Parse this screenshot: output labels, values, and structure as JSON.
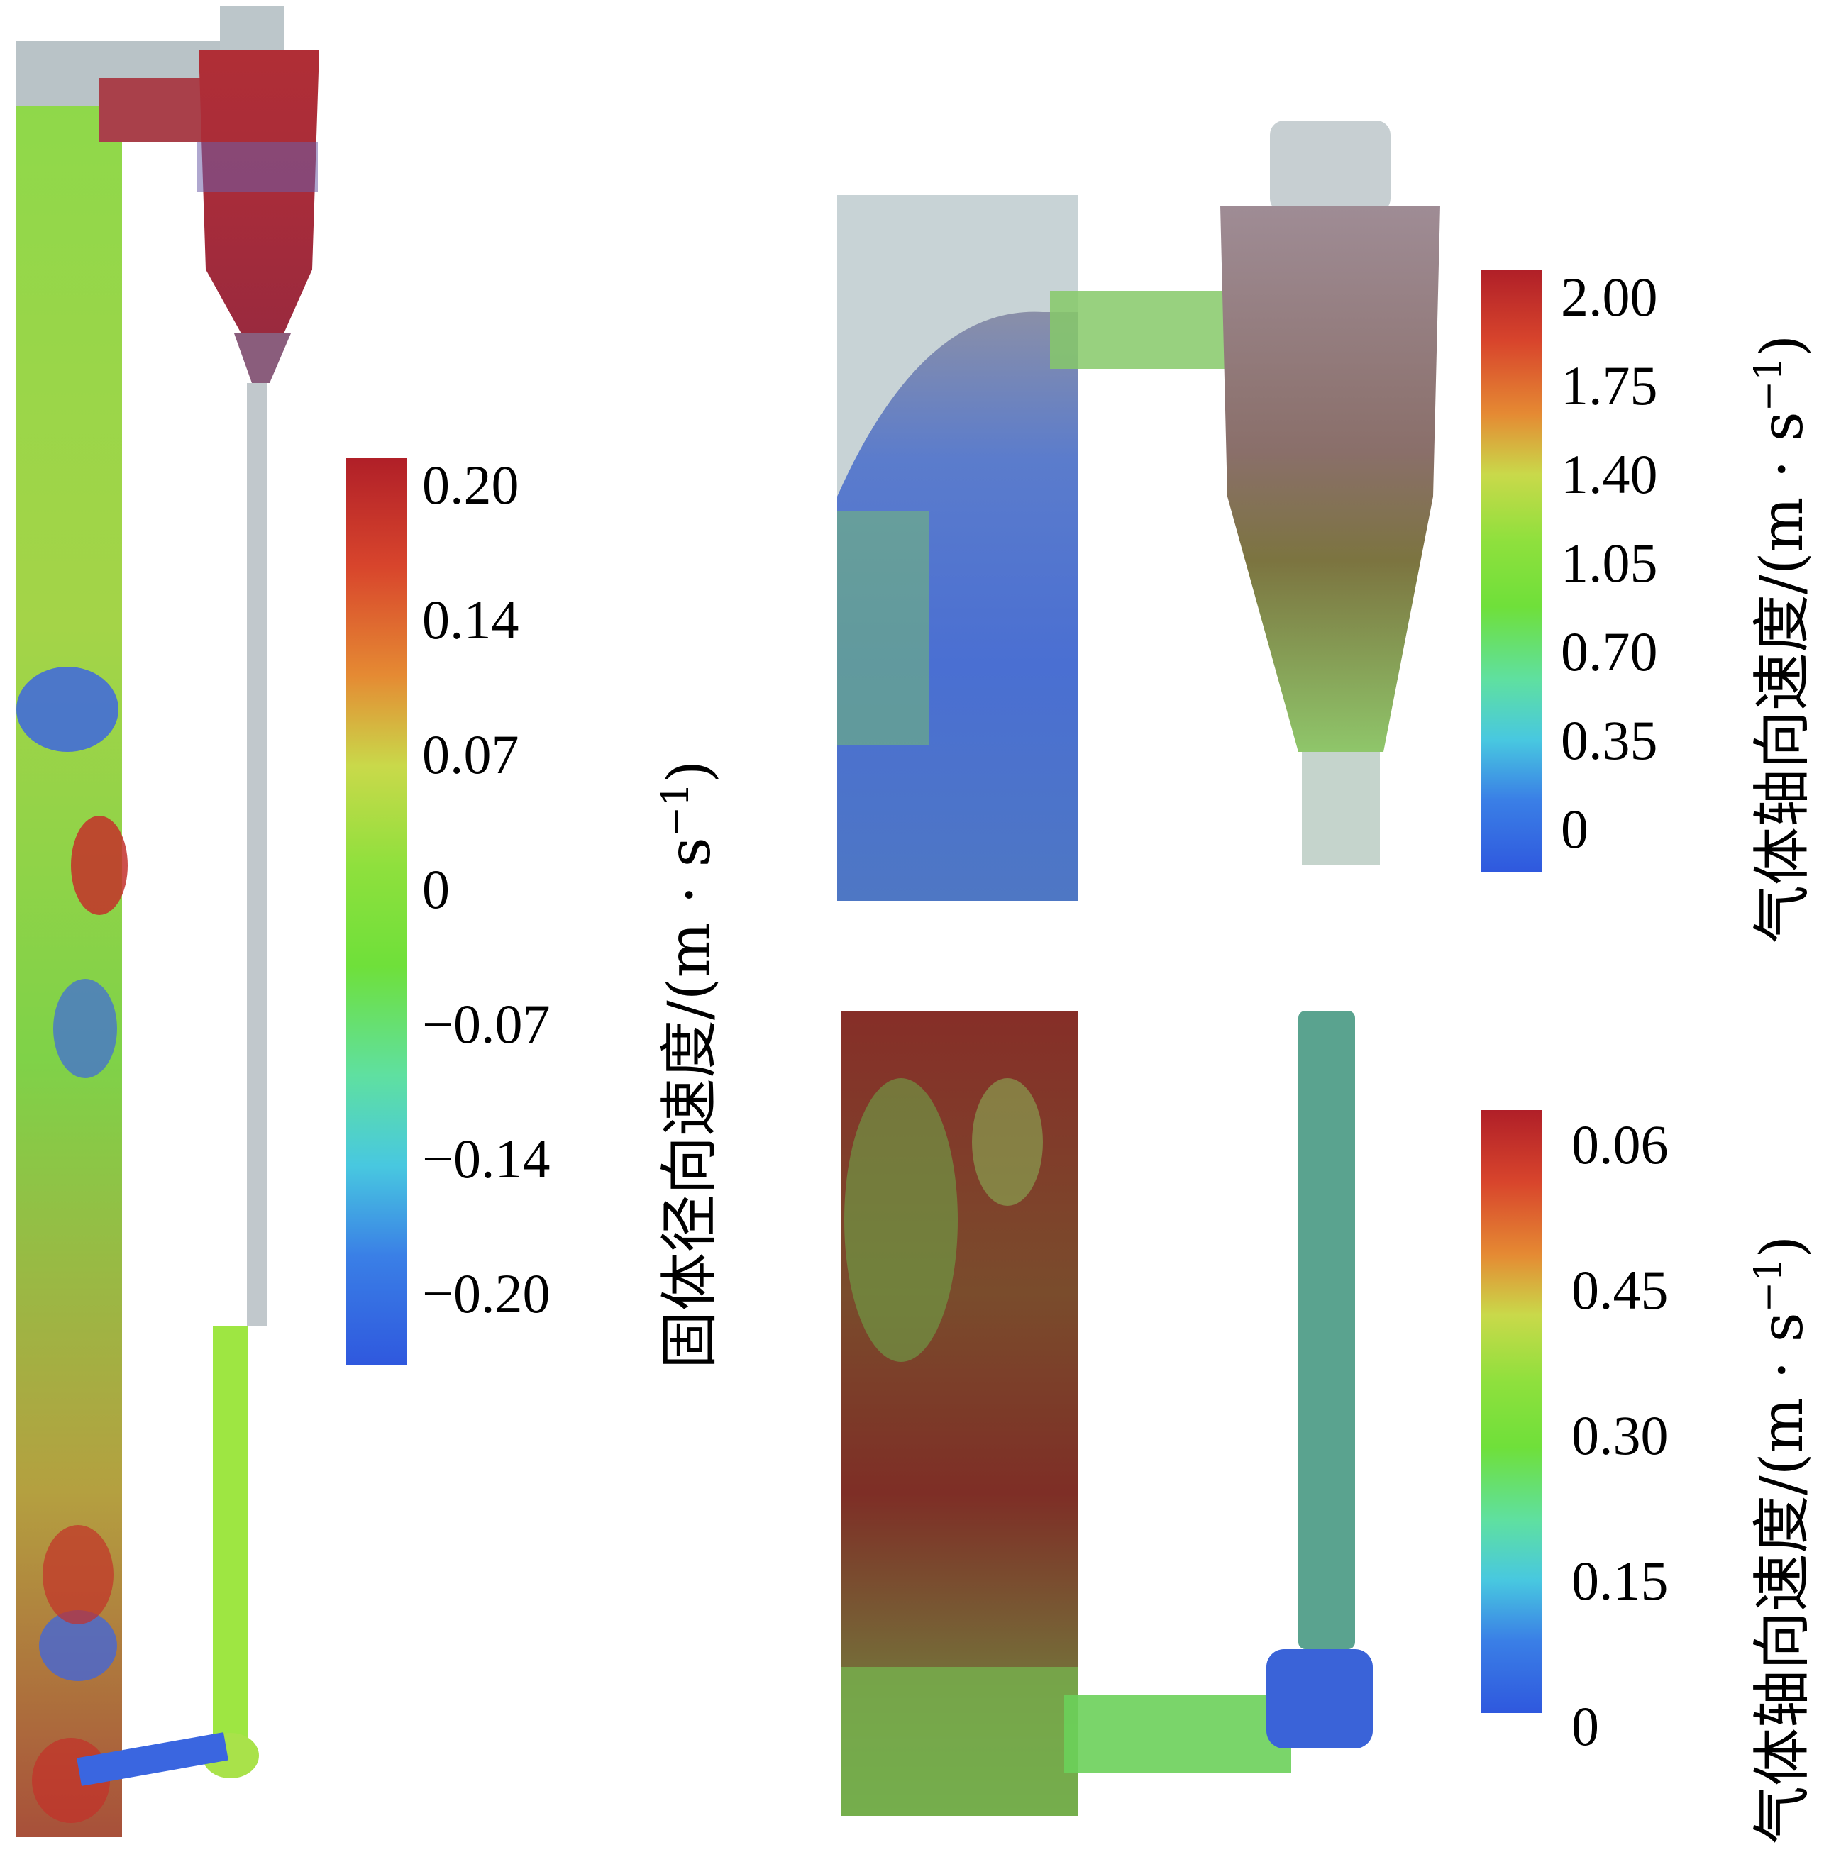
{
  "colors": {
    "red": "#b32026",
    "orange": "#e0782e",
    "yellow_green": "#b5e04a",
    "green": "#6fe33b",
    "cyan": "#3fd8d0",
    "blue": "#2f5fe0",
    "grey": "#a9b6bb",
    "teal": "#5aa38f"
  },
  "colorbars": [
    {
      "id": "solid-radial",
      "ticks": [
        "0.20",
        "0.14",
        "0.07",
        "0",
        "−0.07",
        "−0.14",
        "−0.20"
      ],
      "label": "固体径向速度/(m · s",
      "label_sup": "−1",
      "label_tail": ")"
    },
    {
      "id": "gas-axial-top",
      "ticks": [
        "2.00",
        "1.75",
        "1.40",
        "1.05",
        "0.70",
        "0.35",
        "0"
      ],
      "label": "气体轴向速度/(m · s",
      "label_sup": "−1",
      "label_tail": ")"
    },
    {
      "id": "gas-axial-bottom",
      "ticks": [
        "0.06",
        "0.45",
        "0.30",
        "0.15",
        "0"
      ],
      "label": "气体轴向速度/(m · s",
      "label_sup": "−1",
      "label_tail": ")"
    }
  ]
}
